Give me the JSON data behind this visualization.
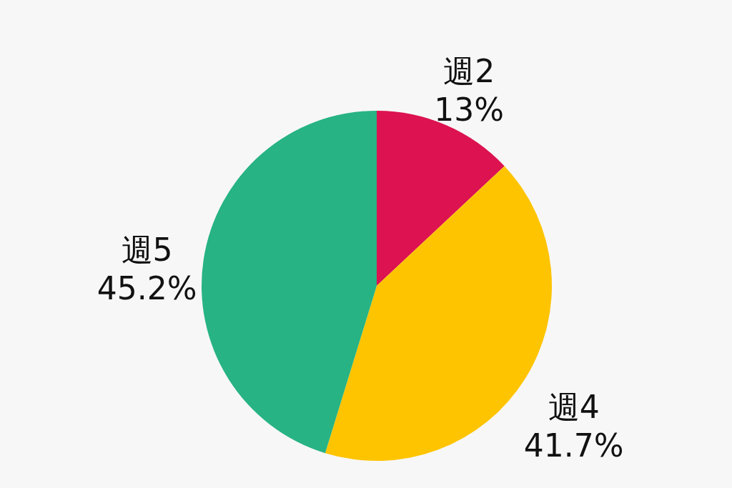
{
  "chart_data": {
    "type": "pie",
    "categories": [
      "週2",
      "週4",
      "週5"
    ],
    "values": [
      13,
      41.7,
      45.2
    ],
    "value_labels": [
      "13%",
      "41.7%",
      "45.2%"
    ],
    "colors": [
      "#dc1350",
      "#fec400",
      "#27b383"
    ]
  }
}
